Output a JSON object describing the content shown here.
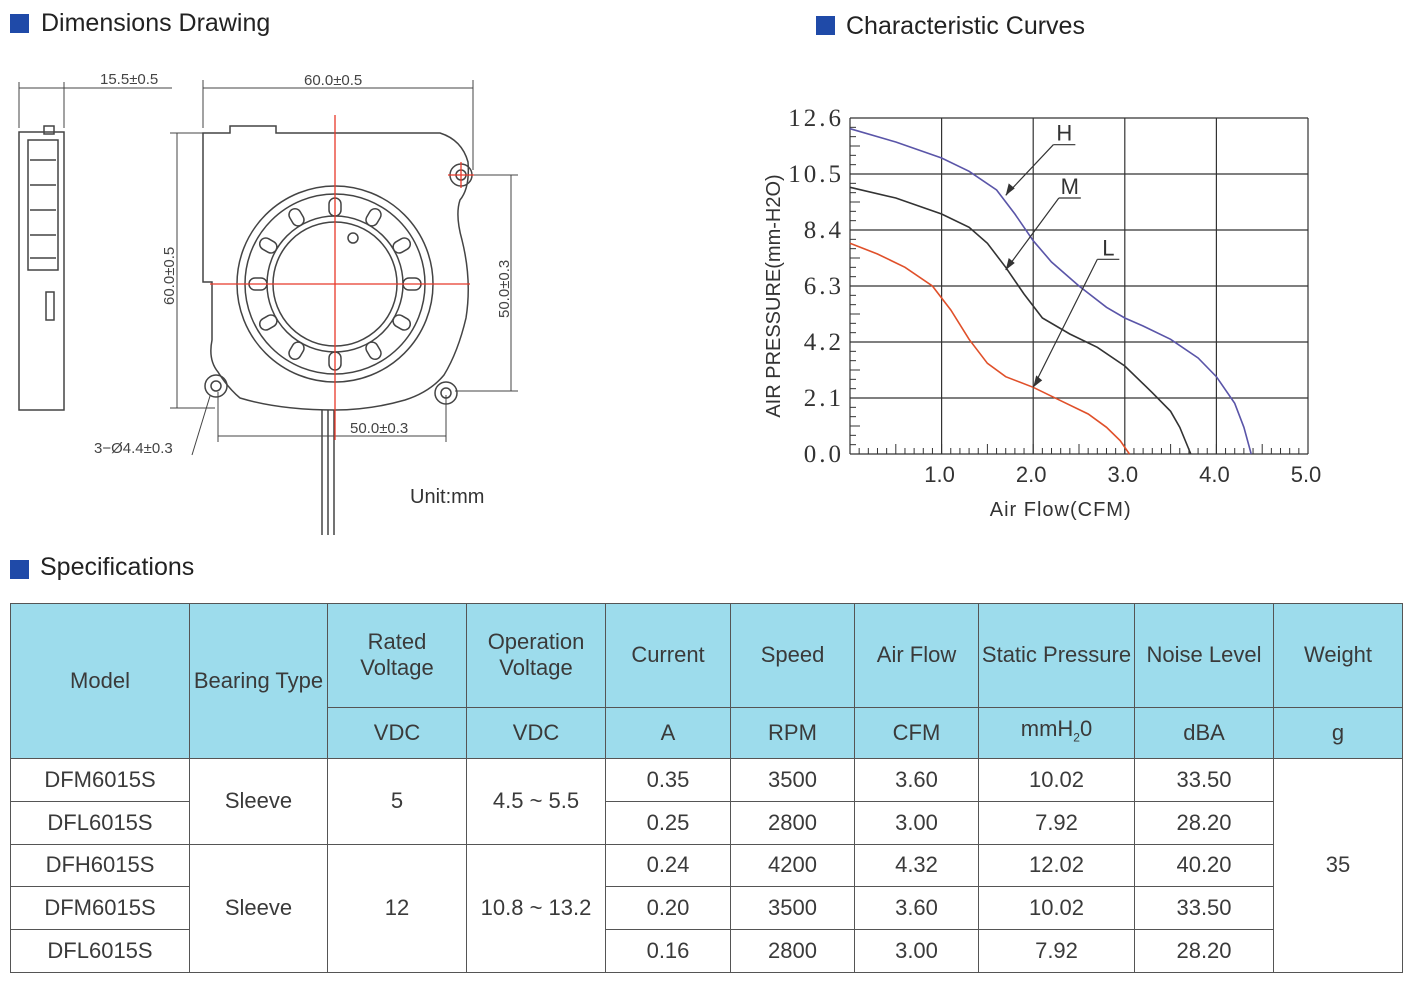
{
  "titles": {
    "dimensions": "Dimensions Drawing",
    "curves": "Characteristic Curves",
    "specs": "Specifications"
  },
  "colors": {
    "accent": "#1f4aa8",
    "header_bg": "#9ddcec",
    "curve_h": "#5a55a8",
    "curve_m": "#333333",
    "curve_l": "#e0502a",
    "centerline": "#e8392a"
  },
  "drawing": {
    "dim_width_side": "15.5±0.5",
    "dim_width_top": "60.0±0.5",
    "dim_height_left": "60.0±0.5",
    "dim_height_right": "50.0±0.3",
    "dim_bottom_holes": "50.0±0.3",
    "dim_holes": "3−Ø4.4±0.3",
    "unit": "Unit:mm"
  },
  "chart_data": {
    "type": "line",
    "title": "Characteristic Curves",
    "xlabel": "Air Flow(CFM)",
    "ylabel": "AIR PRESSURE(mm-H2O)",
    "xlim": [
      0,
      5
    ],
    "ylim": [
      0,
      12.6
    ],
    "x_ticks": [
      "1.0",
      "2.0",
      "3.0",
      "4.0",
      "5.0"
    ],
    "y_ticks": [
      "0.0",
      "2.1",
      "4.2",
      "6.3",
      "8.4",
      "10.5",
      "12.6"
    ],
    "series": [
      {
        "name": "H",
        "points": [
          [
            0,
            12.2
          ],
          [
            0.5,
            11.7
          ],
          [
            1.0,
            11.1
          ],
          [
            1.3,
            10.6
          ],
          [
            1.6,
            9.9
          ],
          [
            1.8,
            9.0
          ],
          [
            2.0,
            8.0
          ],
          [
            2.2,
            7.2
          ],
          [
            2.5,
            6.3
          ],
          [
            2.8,
            5.5
          ],
          [
            3.0,
            5.1
          ],
          [
            3.2,
            4.8
          ],
          [
            3.5,
            4.3
          ],
          [
            3.8,
            3.6
          ],
          [
            4.0,
            2.9
          ],
          [
            4.2,
            1.9
          ],
          [
            4.3,
            1.0
          ],
          [
            4.38,
            0.0
          ]
        ]
      },
      {
        "name": "M",
        "points": [
          [
            0,
            10.0
          ],
          [
            0.5,
            9.6
          ],
          [
            1.0,
            9.0
          ],
          [
            1.3,
            8.5
          ],
          [
            1.5,
            7.9
          ],
          [
            1.7,
            7.0
          ],
          [
            1.9,
            6.0
          ],
          [
            2.1,
            5.1
          ],
          [
            2.4,
            4.5
          ],
          [
            2.7,
            4.0
          ],
          [
            3.0,
            3.3
          ],
          [
            3.3,
            2.3
          ],
          [
            3.5,
            1.6
          ],
          [
            3.6,
            1.0
          ],
          [
            3.72,
            0.0
          ]
        ]
      },
      {
        "name": "L",
        "points": [
          [
            0,
            7.9
          ],
          [
            0.3,
            7.5
          ],
          [
            0.6,
            7.0
          ],
          [
            0.9,
            6.3
          ],
          [
            1.1,
            5.4
          ],
          [
            1.3,
            4.3
          ],
          [
            1.5,
            3.4
          ],
          [
            1.7,
            2.9
          ],
          [
            2.0,
            2.5
          ],
          [
            2.3,
            2.0
          ],
          [
            2.6,
            1.5
          ],
          [
            2.8,
            1.0
          ],
          [
            2.95,
            0.5
          ],
          [
            3.05,
            0.0
          ]
        ]
      }
    ]
  },
  "specs": {
    "headers": {
      "model": "Model",
      "bearing": "Bearing Type",
      "rated": "Rated Voltage",
      "operation": "Operation Voltage",
      "current": "Current",
      "speed": "Speed",
      "airflow": "Air Flow",
      "pressure": "Static Pressure",
      "noise": "Noise Level",
      "weight": "Weight"
    },
    "units": {
      "rated": "VDC",
      "operation": "VDC",
      "current": "A",
      "speed": "RPM",
      "airflow": "CFM",
      "pressure": "mmH",
      "pressure_sub": "2",
      "pressure_tail": "0",
      "noise": "dBA",
      "weight": "g"
    },
    "group1": {
      "bearing": "Sleeve",
      "rated": "5",
      "operation": "4.5 ~ 5.5"
    },
    "group2": {
      "bearing": "Sleeve",
      "rated": "12",
      "operation": "10.8 ~ 13.2"
    },
    "weight_value": "35",
    "rows": [
      {
        "model": "DFM6015S",
        "current": "0.35",
        "speed": "3500",
        "airflow": "3.60",
        "pressure": "10.02",
        "noise": "33.50"
      },
      {
        "model": "DFL6015S",
        "current": "0.25",
        "speed": "2800",
        "airflow": "3.00",
        "pressure": "7.92",
        "noise": "28.20"
      },
      {
        "model": "DFH6015S",
        "current": "0.24",
        "speed": "4200",
        "airflow": "4.32",
        "pressure": "12.02",
        "noise": "40.20"
      },
      {
        "model": "DFM6015S",
        "current": "0.20",
        "speed": "3500",
        "airflow": "3.60",
        "pressure": "10.02",
        "noise": "33.50"
      },
      {
        "model": "DFL6015S",
        "current": "0.16",
        "speed": "2800",
        "airflow": "3.00",
        "pressure": "7.92",
        "noise": "28.20"
      }
    ]
  }
}
